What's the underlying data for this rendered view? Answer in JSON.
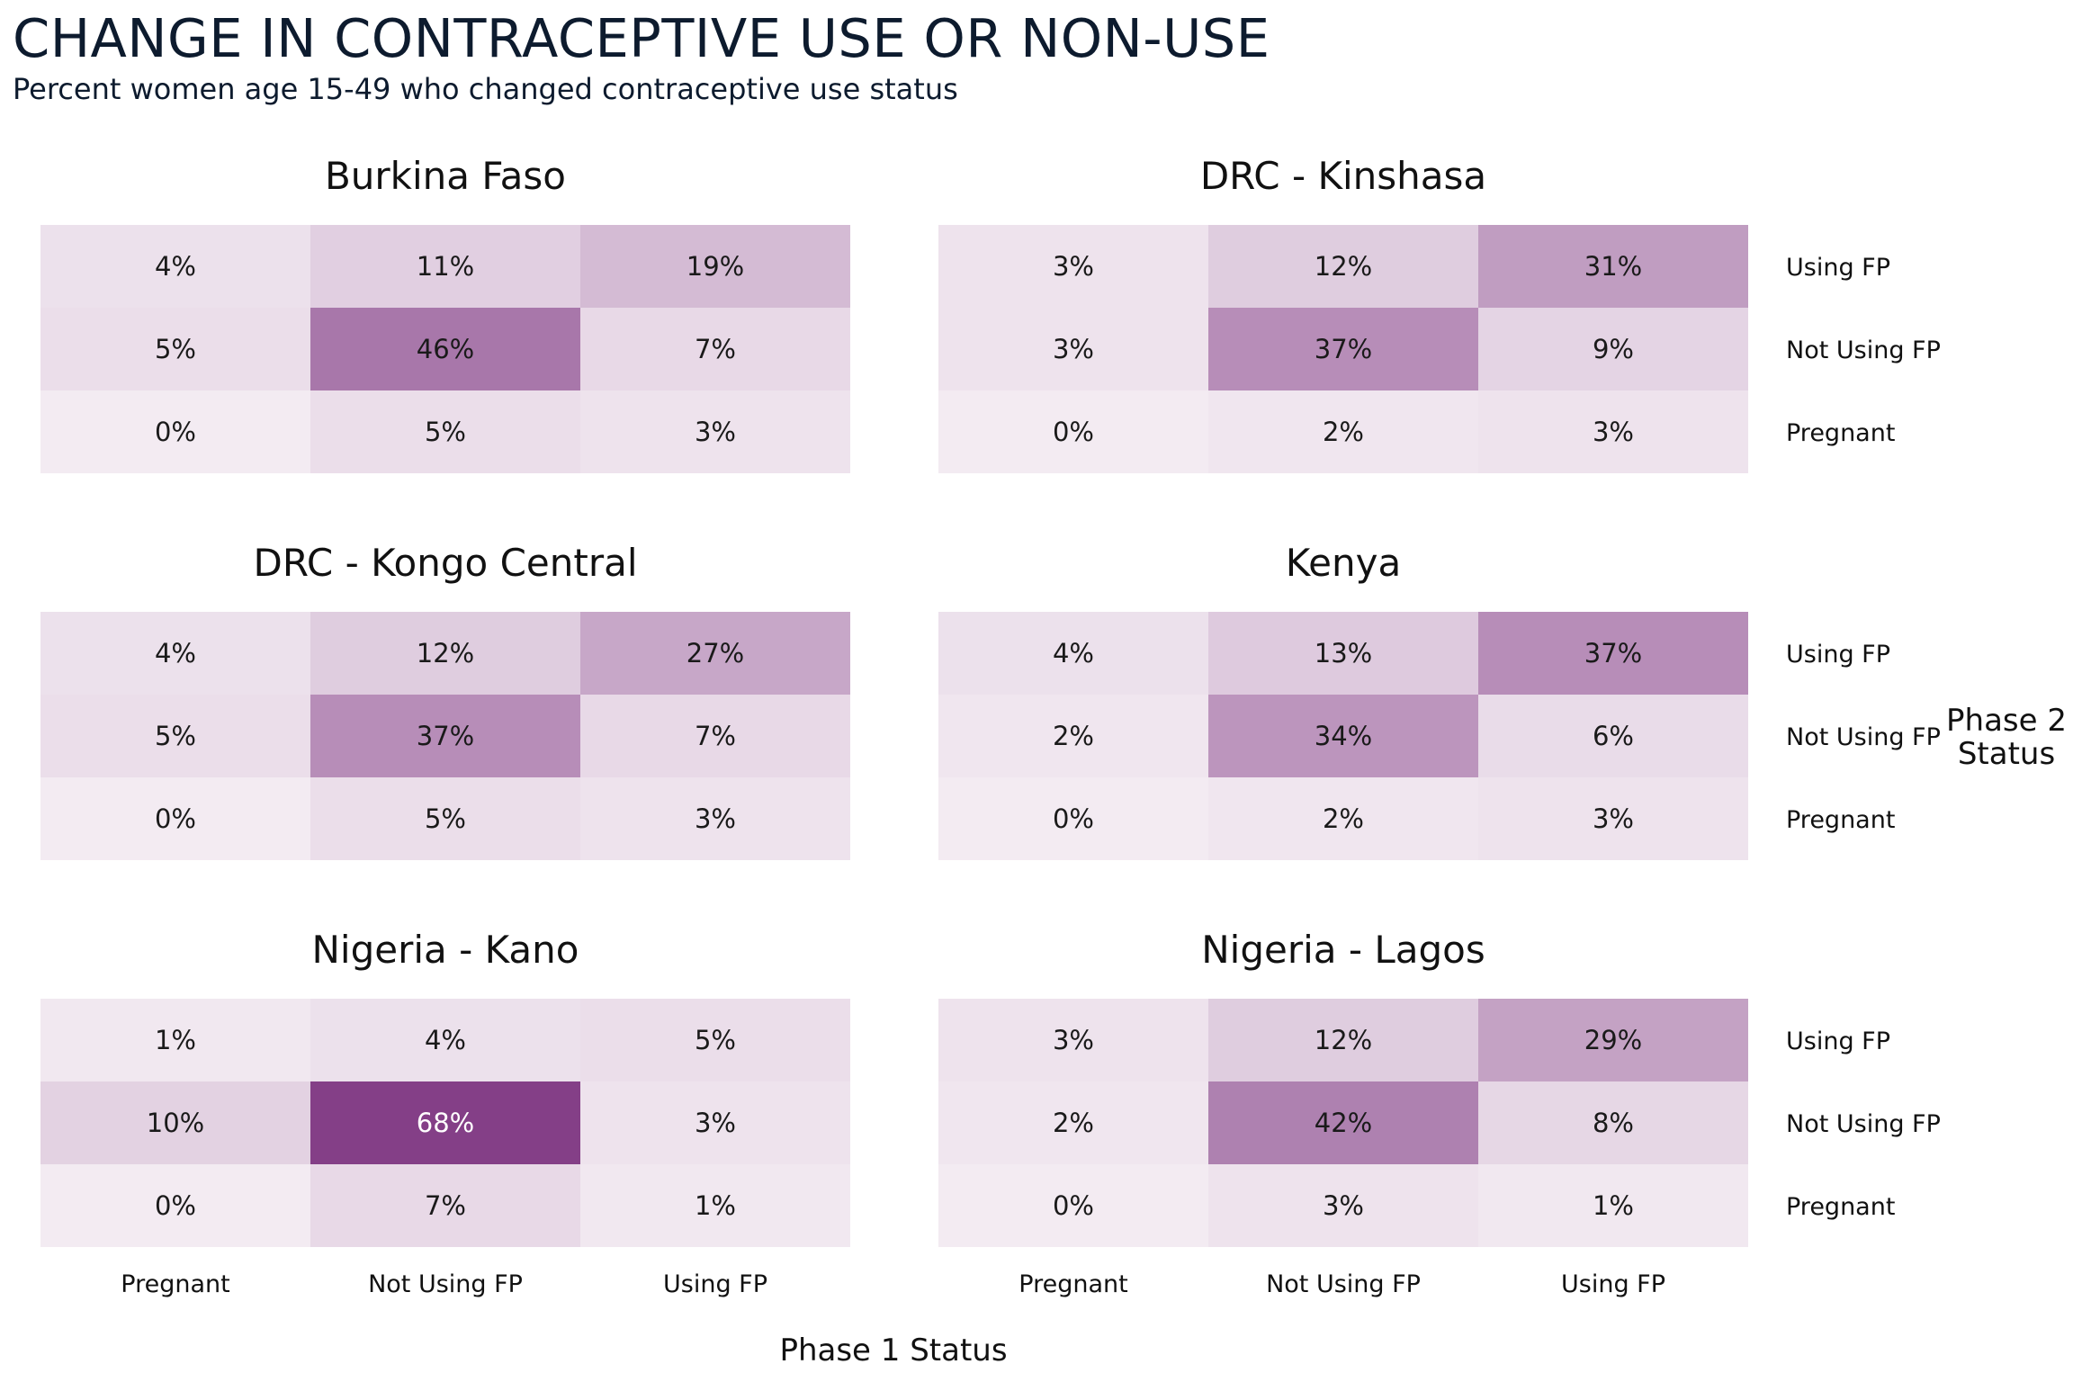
{
  "header": {
    "title": "CHANGE IN CONTRACEPTIVE USE OR NON-USE",
    "subtitle": "Percent women age 15-49 who changed contraceptive use status"
  },
  "chart_data": {
    "type": "heatmap",
    "x_title": "Phase 1 Status",
    "y_title_lines": [
      "Phase 2",
      "Status"
    ],
    "x_categories": [
      "Pregnant",
      "Not Using FP",
      "Using FP"
    ],
    "y_categories": [
      "Using FP",
      "Not Using FP",
      "Pregnant"
    ],
    "color_low": "#f3ebf2",
    "color_high": "#843f87",
    "value_max": 68,
    "text_dark": "#1a1a1a",
    "text_light": "#ffffff",
    "facets": [
      {
        "name": "Burkina Faso",
        "values": [
          [
            4,
            11,
            19
          ],
          [
            5,
            46,
            7
          ],
          [
            0,
            5,
            3
          ]
        ]
      },
      {
        "name": "DRC - Kinshasa",
        "values": [
          [
            3,
            12,
            31
          ],
          [
            3,
            37,
            9
          ],
          [
            0,
            2,
            3
          ]
        ]
      },
      {
        "name": "DRC - Kongo Central",
        "values": [
          [
            4,
            12,
            27
          ],
          [
            5,
            37,
            7
          ],
          [
            0,
            5,
            3
          ]
        ]
      },
      {
        "name": "Kenya",
        "values": [
          [
            4,
            13,
            37
          ],
          [
            2,
            34,
            6
          ],
          [
            0,
            2,
            3
          ]
        ]
      },
      {
        "name": "Nigeria - Kano",
        "values": [
          [
            1,
            4,
            5
          ],
          [
            10,
            68,
            3
          ],
          [
            0,
            7,
            1
          ]
        ]
      },
      {
        "name": "Nigeria - Lagos",
        "values": [
          [
            3,
            12,
            29
          ],
          [
            2,
            42,
            8
          ],
          [
            0,
            3,
            1
          ]
        ]
      }
    ]
  }
}
